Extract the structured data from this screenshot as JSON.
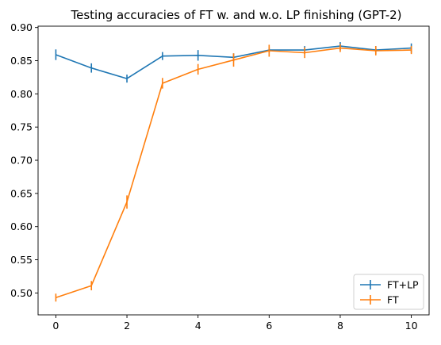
{
  "chart_data": {
    "type": "line",
    "title": "Testing accuracies of FT w. and w.o. LP finishing (GPT-2)",
    "xlabel": "",
    "ylabel": "",
    "x": [
      0,
      1,
      2,
      3,
      4,
      5,
      6,
      7,
      8,
      9,
      10
    ],
    "xlim": [
      -0.5,
      10.5
    ],
    "ylim": [
      0.467,
      0.902
    ],
    "x_ticks": [
      0,
      2,
      4,
      6,
      8,
      10
    ],
    "y_ticks": [
      0.5,
      0.55,
      0.6,
      0.65,
      0.7,
      0.75,
      0.8,
      0.85,
      0.9
    ],
    "y_tick_labels": [
      "0.50",
      "0.55",
      "0.60",
      "0.65",
      "0.70",
      "0.75",
      "0.80",
      "0.85",
      "0.90"
    ],
    "grid": false,
    "legend_position": "lower-right",
    "series": [
      {
        "name": "FT+LP",
        "color": "#1f77b4",
        "values": [
          0.859,
          0.839,
          0.823,
          0.857,
          0.858,
          0.855,
          0.866,
          0.866,
          0.872,
          0.866,
          0.869
        ],
        "errors": [
          0.008,
          0.007,
          0.006,
          0.006,
          0.008,
          0.006,
          0.004,
          0.006,
          0.006,
          0.006,
          0.007
        ]
      },
      {
        "name": "FT",
        "color": "#ff7f0e",
        "values": [
          0.493,
          0.511,
          0.637,
          0.816,
          0.837,
          0.851,
          0.865,
          0.862,
          0.869,
          0.865,
          0.866
        ],
        "errors": [
          0.006,
          0.007,
          0.01,
          0.008,
          0.008,
          0.01,
          0.009,
          0.008,
          0.006,
          0.007,
          0.006
        ]
      }
    ]
  }
}
